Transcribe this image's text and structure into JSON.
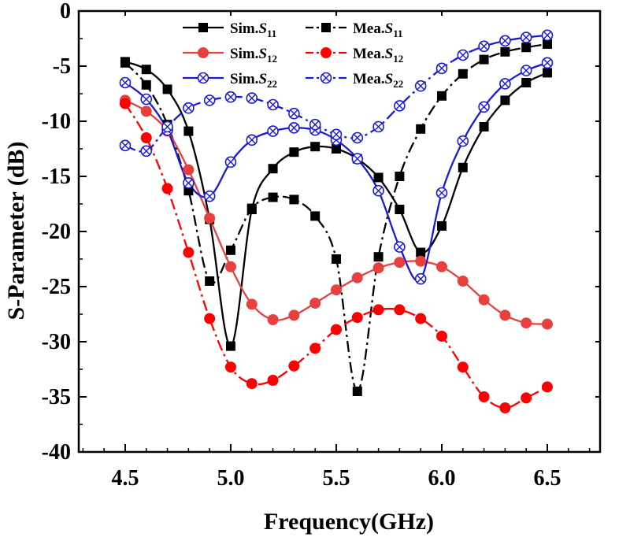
{
  "chart_data": {
    "type": "line",
    "xlabel": "Frequency(GHz)",
    "ylabel": "S-Parameter (dB)",
    "xlim": [
      4.28,
      6.75
    ],
    "ylim": [
      -40,
      0
    ],
    "x_ticks": [
      4.5,
      5.0,
      5.5,
      6.0,
      6.5
    ],
    "x_tick_labels": [
      "4.5",
      "5.0",
      "5.5",
      "6.0",
      "6.5"
    ],
    "y_ticks": [
      0,
      -5,
      -10,
      -15,
      -20,
      -25,
      -30,
      -35,
      -40
    ],
    "y_tick_labels": [
      "0",
      "-5",
      "-10",
      "-15",
      "-20",
      "-25",
      "-30",
      "-35",
      "-40"
    ],
    "x": [
      4.5,
      4.6,
      4.7,
      4.8,
      4.9,
      5.0,
      5.1,
      5.2,
      5.3,
      5.4,
      5.5,
      5.6,
      5.7,
      5.8,
      5.9,
      6.0,
      6.1,
      6.2,
      6.3,
      6.4,
      6.5
    ],
    "legend_position": "top",
    "series": [
      {
        "name": "Sim.S11",
        "label_main": "Sim.",
        "label_sym": "S",
        "label_sub": "11",
        "color": "#000000",
        "dash": "solid",
        "marker": "square",
        "values": [
          -4.6,
          -5.3,
          -7.1,
          -10.9,
          -18.9,
          -30.4,
          -18.0,
          -14.3,
          -12.8,
          -12.3,
          -12.5,
          -13.4,
          -15.1,
          -18.0,
          -21.9,
          -19.5,
          -14.2,
          -10.5,
          -8.1,
          -6.5,
          -5.6
        ]
      },
      {
        "name": "Mea.S11",
        "label_main": "Mea.",
        "label_sym": "S",
        "label_sub": "11",
        "color": "#000000",
        "dash": "dashdot",
        "marker": "square",
        "values": [
          -4.7,
          -6.7,
          -10.3,
          -16.3,
          -24.5,
          -21.7,
          -17.9,
          -16.9,
          -17.1,
          -18.6,
          -22.5,
          -34.5,
          -22.3,
          -15.0,
          -10.7,
          -7.7,
          -5.7,
          -4.4,
          -3.7,
          -3.3,
          -3.0
        ]
      },
      {
        "name": "Sim.S12",
        "label_main": "Sim.",
        "label_sym": "S",
        "label_sub": "12",
        "color": "#e8403f",
        "dash": "solid",
        "marker": "circle",
        "values": [
          -8.1,
          -9.1,
          -10.9,
          -14.4,
          -18.8,
          -23.2,
          -26.6,
          -28.0,
          -27.6,
          -26.5,
          -25.3,
          -24.2,
          -23.3,
          -22.8,
          -22.7,
          -23.2,
          -24.5,
          -26.2,
          -27.6,
          -28.3,
          -28.4
        ]
      },
      {
        "name": "Mea.S12",
        "label_main": "Mea.",
        "label_sym": "S",
        "label_sub": "12",
        "color": "#ff0000",
        "dash": "dashdot",
        "marker": "circle",
        "values": [
          -8.4,
          -11.5,
          -16.1,
          -21.9,
          -27.9,
          -32.3,
          -33.8,
          -33.5,
          -32.2,
          -30.6,
          -28.9,
          -27.8,
          -27.1,
          -27.1,
          -27.9,
          -29.5,
          -32.3,
          -35.0,
          -36.0,
          -35.1,
          -34.1
        ]
      },
      {
        "name": "Sim.S22",
        "label_main": "Sim.",
        "label_sym": "S",
        "label_sub": "22",
        "color": "#1a1ad6",
        "dash": "solid",
        "marker": "circle-x",
        "values": [
          -6.5,
          -8.0,
          -10.8,
          -15.6,
          -16.8,
          -13.7,
          -11.7,
          -10.9,
          -10.6,
          -10.8,
          -11.7,
          -13.4,
          -16.3,
          -21.4,
          -24.3,
          -16.5,
          -11.8,
          -8.7,
          -6.6,
          -5.4,
          -4.7
        ]
      },
      {
        "name": "Mea.S22",
        "label_main": "Mea.",
        "label_sym": "S",
        "label_sub": "22",
        "color": "#1a1ad6",
        "dash": "dashdot",
        "marker": "circle-x",
        "values": [
          -12.2,
          -12.7,
          -10.5,
          -8.8,
          -8.1,
          -7.8,
          -7.9,
          -8.5,
          -9.3,
          -10.3,
          -11.2,
          -11.5,
          -10.5,
          -8.6,
          -6.8,
          -5.2,
          -4.0,
          -3.2,
          -2.7,
          -2.4,
          -2.2
        ]
      }
    ]
  }
}
